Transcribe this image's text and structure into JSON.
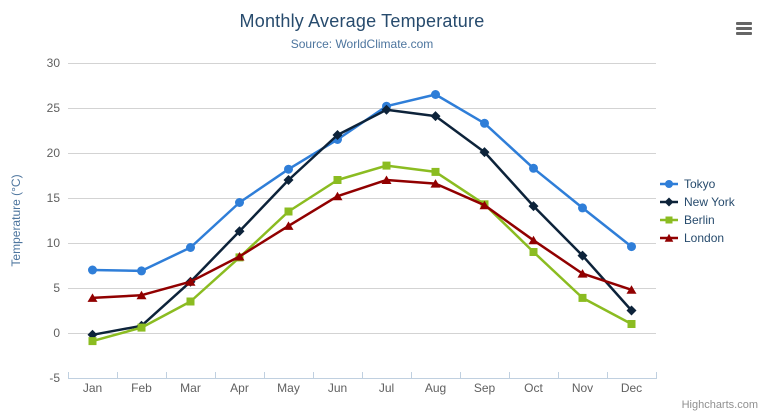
{
  "header": {
    "title": "Monthly Average Temperature",
    "subtitle": "Source: WorldClimate.com"
  },
  "credits": {
    "label": "Highcharts.com"
  },
  "export_menu": {
    "icon": "hamburger-icon"
  },
  "colors": {
    "title": "#274b6d",
    "subtitle": "#4d759e",
    "grid": "#d3d3d3",
    "axis_line": "#c0d0e0",
    "tick_label": "#606060",
    "axis_title": "#4d759e",
    "legend_text": "#274b6d",
    "credits": "#909090",
    "export_icon": "#666666"
  },
  "chart_data": {
    "type": "line",
    "title": "Monthly Average Temperature",
    "subtitle": "Source: WorldClimate.com",
    "categories": [
      "Jan",
      "Feb",
      "Mar",
      "Apr",
      "May",
      "Jun",
      "Jul",
      "Aug",
      "Sep",
      "Oct",
      "Nov",
      "Dec"
    ],
    "series": [
      {
        "name": "Tokyo",
        "color": "#2f7ed8",
        "marker": "circle",
        "values": [
          7.0,
          6.9,
          9.5,
          14.5,
          18.2,
          21.5,
          25.2,
          26.5,
          23.3,
          18.3,
          13.9,
          9.6
        ]
      },
      {
        "name": "New York",
        "color": "#0d233a",
        "marker": "diamond",
        "values": [
          -0.2,
          0.8,
          5.7,
          11.3,
          17.0,
          22.0,
          24.8,
          24.1,
          20.1,
          14.1,
          8.6,
          2.5
        ]
      },
      {
        "name": "Berlin",
        "color": "#8bbc21",
        "marker": "square",
        "values": [
          -0.9,
          0.6,
          3.5,
          8.4,
          13.5,
          17.0,
          18.6,
          17.9,
          14.3,
          9.0,
          3.9,
          1.0
        ]
      },
      {
        "name": "London",
        "color": "#910000",
        "marker": "triangle",
        "values": [
          3.9,
          4.2,
          5.7,
          8.5,
          11.9,
          15.2,
          17.0,
          16.6,
          14.2,
          10.3,
          6.6,
          4.8
        ]
      }
    ],
    "xlabel": "",
    "ylabel": "Temperature (°C)",
    "ylim": [
      -5,
      30
    ],
    "ytick_step": 5,
    "grid": true,
    "legend_position": "right"
  }
}
